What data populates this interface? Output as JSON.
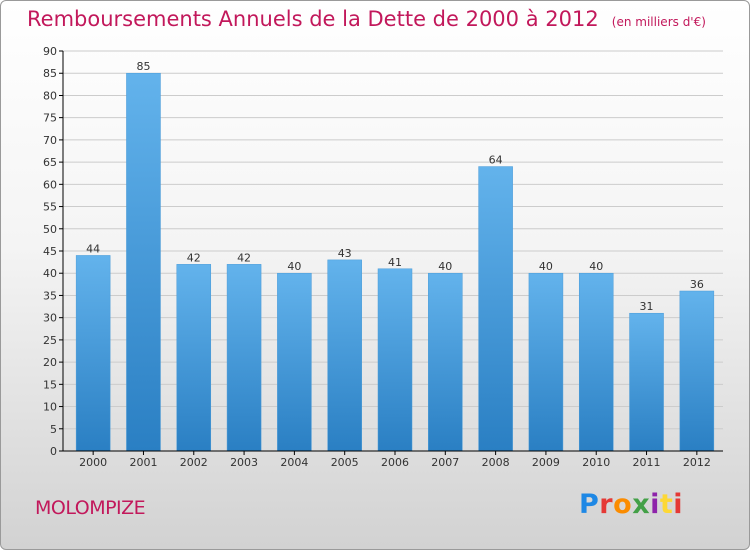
{
  "header": {
    "title": "Remboursements Annuels de la Dette de 2000 à 2012",
    "subtitle": "(en milliers d'€)"
  },
  "footer": {
    "commune": "MOLOMPIZE",
    "brand_letters": [
      "P",
      "r",
      "o",
      "x",
      "i",
      "t",
      "i"
    ],
    "brand_colors": [
      "#1e88e5",
      "#e53935",
      "#fb8c00",
      "#43a047",
      "#8e24aa",
      "#fdd835",
      "#e53935"
    ]
  },
  "colors": {
    "bar_top": "#63b3ec",
    "bar_bottom": "#2a7fc3",
    "axis": "#000000",
    "grid": "#cccccc"
  },
  "chart_data": {
    "type": "bar",
    "title": "Remboursements Annuels de la Dette de 2000 à 2012",
    "subtitle": "(en milliers d'€)",
    "categories": [
      "2000",
      "2001",
      "2002",
      "2003",
      "2004",
      "2005",
      "2006",
      "2007",
      "2008",
      "2009",
      "2010",
      "2011",
      "2012"
    ],
    "values": [
      44,
      85,
      42,
      42,
      40,
      43,
      41,
      40,
      64,
      40,
      40,
      31,
      36
    ],
    "ylim": [
      0,
      90
    ],
    "yticks": [
      0,
      5,
      10,
      15,
      20,
      25,
      30,
      35,
      40,
      45,
      50,
      55,
      60,
      65,
      70,
      75,
      80,
      85,
      90
    ],
    "grid": true,
    "data_labels": true
  }
}
